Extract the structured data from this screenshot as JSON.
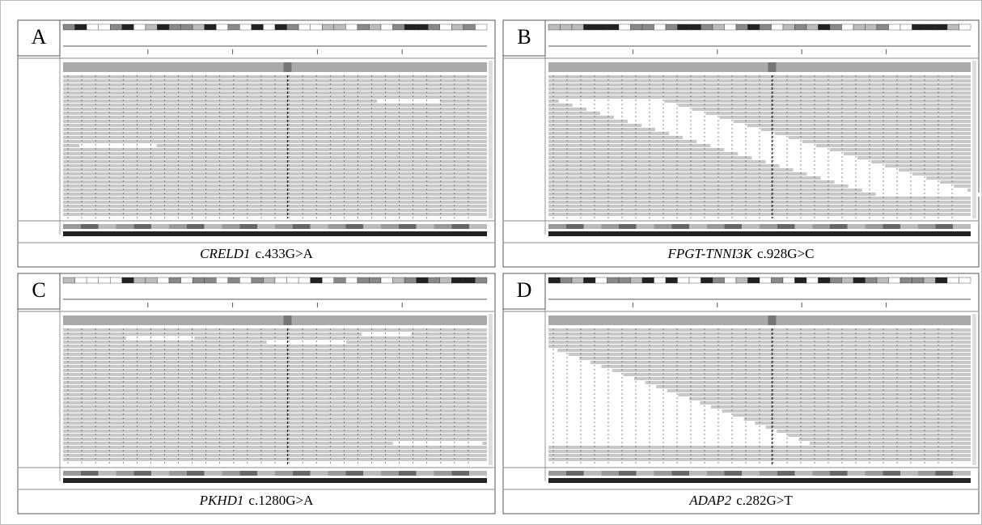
{
  "panels": [
    {
      "label": "A",
      "gene": "CRELD1",
      "variant": "c.433G>A"
    },
    {
      "label": "B",
      "gene": "FPGT-TNNI3K",
      "variant": "c.928G>C"
    },
    {
      "label": "C",
      "gene": "PKHD1",
      "variant": "c.1280G>A"
    },
    {
      "label": "D",
      "gene": "ADAP2",
      "variant": "c.282G>T"
    }
  ]
}
